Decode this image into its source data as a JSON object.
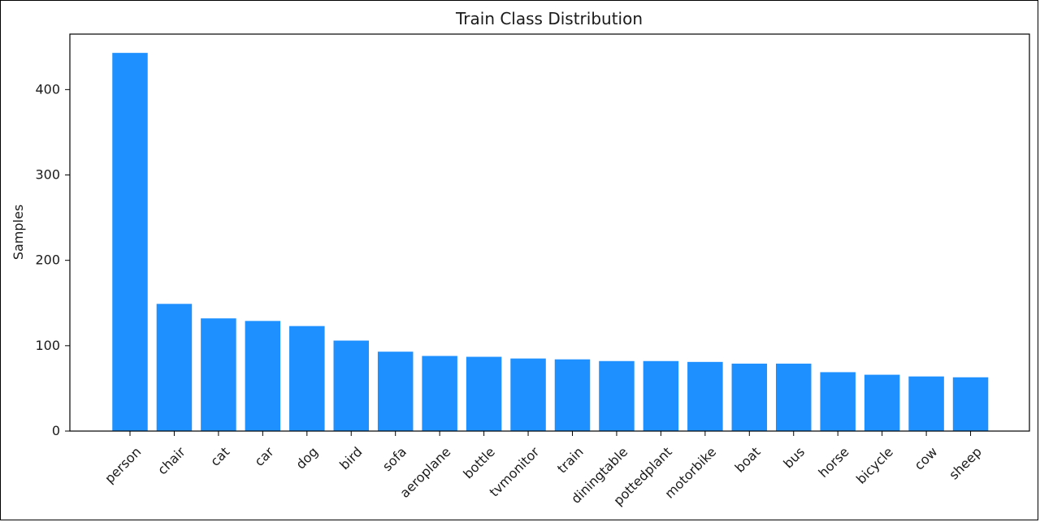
{
  "chart_data": {
    "type": "bar",
    "title": "Train Class Distribution",
    "xlabel": "",
    "ylabel": "Samples",
    "categories": [
      "person",
      "chair",
      "cat",
      "car",
      "dog",
      "bird",
      "sofa",
      "aeroplane",
      "bottle",
      "tvmonitor",
      "train",
      "diningtable",
      "pottedplant",
      "motorbike",
      "boat",
      "bus",
      "horse",
      "bicycle",
      "cow",
      "sheep"
    ],
    "values": [
      443,
      149,
      132,
      129,
      123,
      106,
      93,
      88,
      87,
      85,
      84,
      82,
      82,
      81,
      79,
      79,
      69,
      66,
      64,
      63
    ],
    "ylim": [
      0,
      465
    ],
    "yticks": [
      0,
      100,
      200,
      300,
      400
    ],
    "bar_color": "#1e90ff",
    "grid": false
  }
}
